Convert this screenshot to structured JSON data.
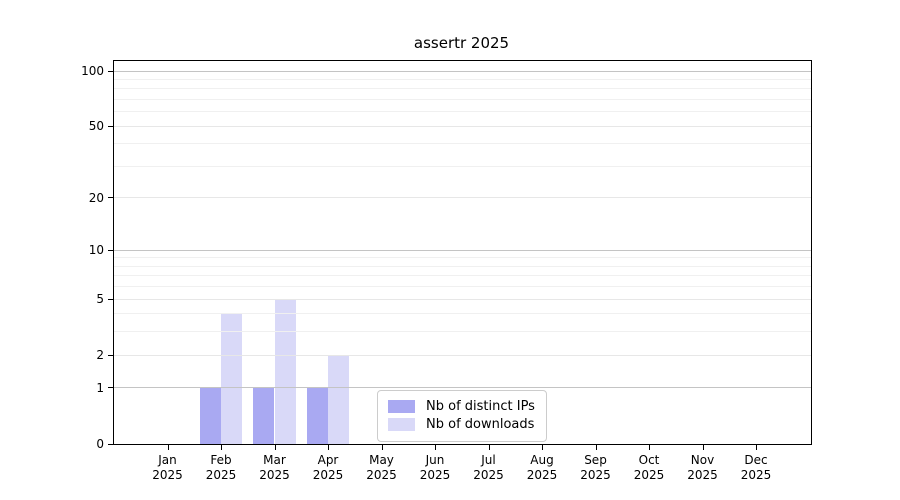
{
  "title": "assertr 2025",
  "colors": {
    "ips_bar": "#a9a9f2",
    "downloads_bar": "#d9d9f8",
    "grid_major": "#c4c4c4",
    "grid_labeled": "#e7e7e7",
    "grid_minor": "#f0f0f0",
    "axis": "#000000",
    "legend_border": "#cccccc"
  },
  "chart_data": {
    "type": "bar",
    "title": "assertr 2025",
    "categories": [
      "Jan 2025",
      "Feb 2025",
      "Mar 2025",
      "Apr 2025",
      "May 2025",
      "Jun 2025",
      "Jul 2025",
      "Aug 2025",
      "Sep 2025",
      "Oct 2025",
      "Nov 2025",
      "Dec 2025"
    ],
    "x_tick_months": [
      "Jan",
      "Feb",
      "Mar",
      "Apr",
      "May",
      "Jun",
      "Jul",
      "Aug",
      "Sep",
      "Oct",
      "Nov",
      "Dec"
    ],
    "x_tick_year": "2025",
    "series": [
      {
        "name": "Nb of distinct IPs",
        "color": "#a9a9f2",
        "values": [
          0,
          1,
          1,
          1,
          0,
          0,
          0,
          0,
          0,
          0,
          0,
          0
        ]
      },
      {
        "name": "Nb of downloads",
        "color": "#d9d9f8",
        "values": [
          0,
          4,
          5,
          2,
          0,
          0,
          0,
          0,
          0,
          0,
          0,
          0
        ]
      }
    ],
    "y_scale": "log10(1+x)",
    "ylim": [
      0,
      112
    ],
    "y_ticks_labeled": [
      0,
      1,
      2,
      5,
      10,
      20,
      50,
      100
    ],
    "y_grid_major": [
      1,
      10,
      100
    ],
    "y_grid_labeled_minor": [
      2,
      5,
      20,
      50
    ],
    "y_grid_minor": [
      3,
      4,
      6,
      7,
      8,
      9,
      30,
      40,
      60,
      70,
      80,
      90
    ],
    "grid": "horizontal",
    "legend_position": "inside-bottom-center",
    "xlabel": "",
    "ylabel": ""
  }
}
